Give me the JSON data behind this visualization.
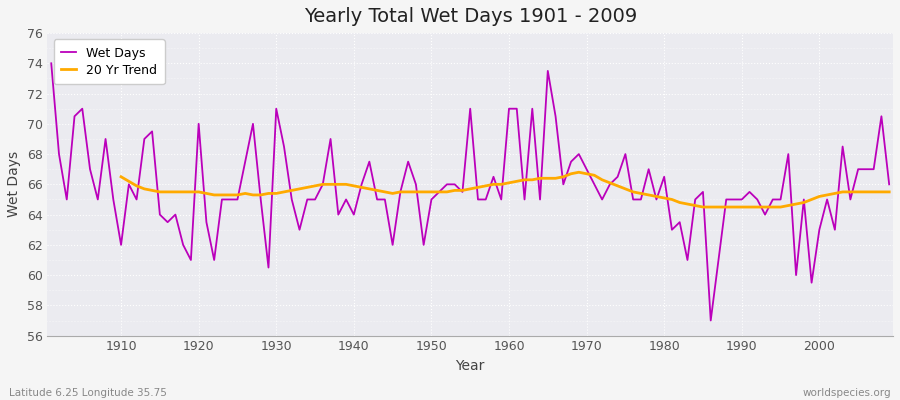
{
  "title": "Yearly Total Wet Days 1901 - 2009",
  "xlabel": "Year",
  "ylabel": "Wet Days",
  "lat_lon_label": "Latitude 6.25 Longitude 35.75",
  "watermark": "worldspecies.org",
  "ylim": [
    56,
    76
  ],
  "yticks": [
    56,
    58,
    60,
    62,
    64,
    66,
    68,
    70,
    72,
    74,
    76
  ],
  "xticks": [
    1910,
    1920,
    1930,
    1940,
    1950,
    1960,
    1970,
    1980,
    1990,
    2000
  ],
  "wet_days_color": "#bb00bb",
  "trend_color": "#ffaa00",
  "fig_bg_color": "#f5f5f5",
  "plot_bg_color": "#ebebf0",
  "years": [
    1901,
    1902,
    1903,
    1904,
    1905,
    1906,
    1907,
    1908,
    1909,
    1910,
    1911,
    1912,
    1913,
    1914,
    1915,
    1916,
    1917,
    1918,
    1919,
    1920,
    1921,
    1922,
    1923,
    1924,
    1925,
    1926,
    1927,
    1928,
    1929,
    1930,
    1931,
    1932,
    1933,
    1934,
    1935,
    1936,
    1937,
    1938,
    1939,
    1940,
    1941,
    1942,
    1943,
    1944,
    1945,
    1946,
    1947,
    1948,
    1949,
    1950,
    1951,
    1952,
    1953,
    1954,
    1955,
    1956,
    1957,
    1958,
    1959,
    1960,
    1961,
    1962,
    1963,
    1964,
    1965,
    1966,
    1967,
    1968,
    1969,
    1970,
    1971,
    1972,
    1973,
    1974,
    1975,
    1976,
    1977,
    1978,
    1979,
    1980,
    1981,
    1982,
    1983,
    1984,
    1985,
    1986,
    1987,
    1988,
    1989,
    1990,
    1991,
    1992,
    1993,
    1994,
    1995,
    1996,
    1997,
    1998,
    1999,
    2000,
    2001,
    2002,
    2003,
    2004,
    2005,
    2006,
    2007,
    2008,
    2009
  ],
  "wet_days": [
    74,
    68,
    65,
    70.5,
    71,
    67,
    65,
    69,
    65,
    62,
    66,
    65,
    69,
    69.5,
    64,
    63.5,
    64,
    62,
    61,
    70,
    63.5,
    61,
    65,
    65,
    65,
    67.5,
    70,
    65,
    60.5,
    71,
    68.5,
    65,
    63,
    65,
    65,
    66,
    69,
    64,
    65,
    64,
    66,
    67.5,
    65,
    65,
    62,
    65.5,
    67.5,
    66,
    62,
    65,
    65.5,
    66,
    66,
    65.5,
    71,
    65,
    65,
    66.5,
    65,
    71,
    71,
    65,
    71,
    65,
    73.5,
    70.5,
    66,
    67.5,
    68,
    67,
    66,
    65,
    66,
    66.5,
    68,
    65,
    65,
    67,
    65,
    66.5,
    63,
    63.5,
    61,
    65,
    65.5,
    57,
    61,
    65,
    65,
    65,
    65.5,
    65,
    64,
    65,
    65,
    68,
    60,
    65,
    59.5,
    63,
    65,
    63,
    68.5,
    65,
    67,
    67,
    67,
    70.5,
    66
  ],
  "trend": [
    null,
    null,
    null,
    null,
    null,
    null,
    null,
    null,
    null,
    66.5,
    66.2,
    65.9,
    65.7,
    65.6,
    65.5,
    65.5,
    65.5,
    65.5,
    65.5,
    65.5,
    65.4,
    65.3,
    65.3,
    65.3,
    65.3,
    65.4,
    65.3,
    65.3,
    65.4,
    65.4,
    65.5,
    65.6,
    65.7,
    65.8,
    65.9,
    66.0,
    66.0,
    66.0,
    66.0,
    65.9,
    65.8,
    65.7,
    65.6,
    65.5,
    65.4,
    65.5,
    65.5,
    65.5,
    65.5,
    65.5,
    65.5,
    65.5,
    65.6,
    65.6,
    65.7,
    65.8,
    65.9,
    66.0,
    66.0,
    66.1,
    66.2,
    66.3,
    66.3,
    66.4,
    66.4,
    66.4,
    66.5,
    66.7,
    66.8,
    66.7,
    66.6,
    66.3,
    66.1,
    65.9,
    65.7,
    65.5,
    65.4,
    65.3,
    65.2,
    65.1,
    65.0,
    64.8,
    64.7,
    64.6,
    64.5,
    64.5,
    64.5,
    64.5,
    64.5,
    64.5,
    64.5,
    64.5,
    64.5,
    64.5,
    64.5,
    64.6,
    64.7,
    64.8,
    65.0,
    65.2,
    65.3,
    65.4,
    65.5,
    65.5,
    65.5,
    65.5,
    65.5,
    65.5,
    65.5
  ]
}
